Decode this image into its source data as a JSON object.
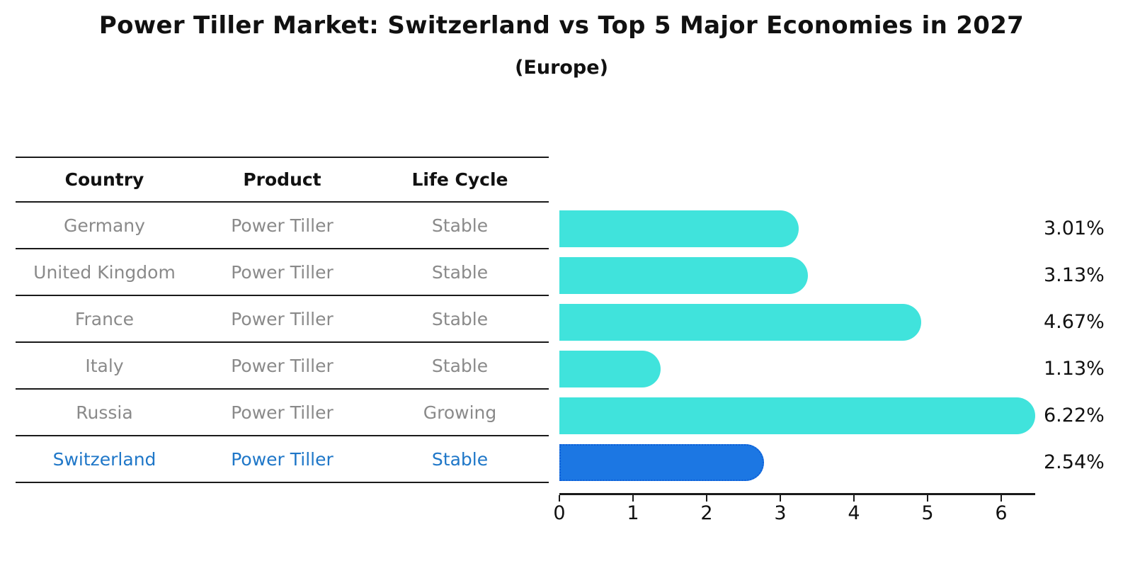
{
  "title": "Power Tiller Market: Switzerland vs Top 5 Major Economies in 2027",
  "subtitle": "(Europe)",
  "table": {
    "headers": [
      "Country",
      "Product",
      "Life Cycle"
    ],
    "rows": [
      {
        "country": "Germany",
        "product": "Power Tiller",
        "life_cycle": "Stable",
        "highlight": false
      },
      {
        "country": "United Kingdom",
        "product": "Power Tiller",
        "life_cycle": "Stable",
        "highlight": false
      },
      {
        "country": "France",
        "product": "Power Tiller",
        "life_cycle": "Stable",
        "highlight": false
      },
      {
        "country": "Italy",
        "product": "Power Tiller",
        "life_cycle": "Stable",
        "highlight": false
      },
      {
        "country": "Russia",
        "product": "Power Tiller",
        "life_cycle": "Growing",
        "highlight": false
      },
      {
        "country": "Switzerland",
        "product": "Power Tiller",
        "life_cycle": "Stable",
        "highlight": true
      }
    ]
  },
  "chart_data": {
    "type": "bar",
    "orientation": "horizontal",
    "title": "Power Tiller Market: Switzerland vs Top 5 Major Economies in 2027",
    "subtitle": "(Europe)",
    "categories": [
      "Germany",
      "United Kingdom",
      "France",
      "Italy",
      "Russia",
      "Switzerland"
    ],
    "values": [
      3.01,
      3.13,
      4.67,
      1.13,
      6.22,
      2.54
    ],
    "value_labels": [
      "3.01%",
      "3.13%",
      "4.67%",
      "1.13%",
      "6.22%",
      "2.54%"
    ],
    "xlabel": "",
    "ylabel": "",
    "xlim": [
      0,
      6.5
    ],
    "xticks": [
      0,
      1,
      2,
      3,
      4,
      5,
      6
    ],
    "grid": false,
    "legend": false,
    "highlight_index": 5,
    "bar_color": "#40E3DC",
    "highlight_color": "#1C77E3",
    "highlight_border_color": "#0E5FD8"
  },
  "colors": {
    "bar_cyan": "#40E3DC",
    "bar_blue": "#1C77E3",
    "highlight_border": "#0E5FD8",
    "table_text_gray": "#8a8a8a",
    "table_text_blue": "#1f77c8",
    "line_black": "#1a1a1a",
    "text_black": "#111111"
  }
}
